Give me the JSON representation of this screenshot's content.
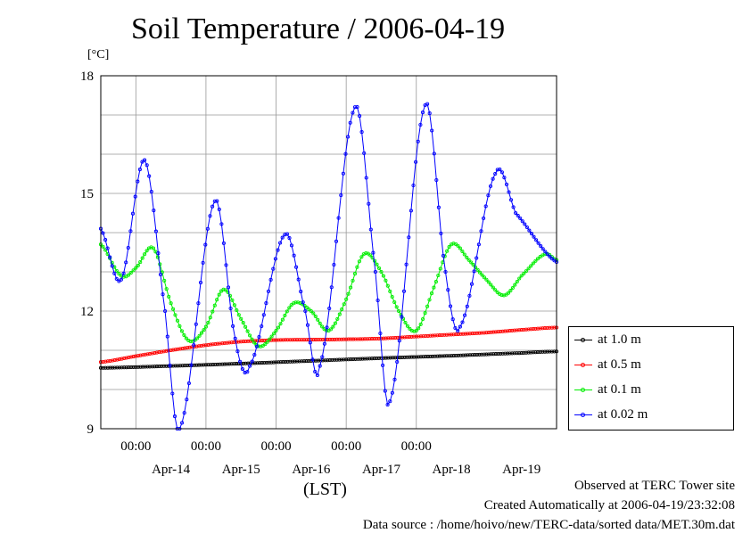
{
  "chart_data": {
    "type": "line",
    "title": "Soil Temperature / 2006-04-19",
    "unit_label": "[°C]",
    "xlabel": "(LST)",
    "x_range": [
      "2006-04-13 12:00",
      "2006-04-19 24:00"
    ],
    "ylim": [
      9,
      18
    ],
    "yticks": [
      9,
      12,
      15,
      18
    ],
    "xticks_time": [
      {
        "x": "2006-04-14 00:00",
        "label": "00:00"
      },
      {
        "x": "2006-04-15 00:00",
        "label": "00:00"
      },
      {
        "x": "2006-04-16 00:00",
        "label": "00:00"
      },
      {
        "x": "2006-04-17 00:00",
        "label": "00:00"
      },
      {
        "x": "2006-04-18 00:00",
        "label": "00:00"
      }
    ],
    "xticks_day": [
      {
        "x": "2006-04-14 12:00",
        "label": "Apr-14"
      },
      {
        "x": "2006-04-15 12:00",
        "label": "Apr-15"
      },
      {
        "x": "2006-04-16 12:00",
        "label": "Apr-16"
      },
      {
        "x": "2006-04-17 12:00",
        "label": "Apr-17"
      },
      {
        "x": "2006-04-18 12:00",
        "label": "Apr-18"
      },
      {
        "x": "2006-04-19 12:00",
        "label": "Apr-19"
      }
    ],
    "grid": true,
    "legend_position": "right",
    "series": [
      {
        "name": "at 1.0 m",
        "color": "#000000",
        "x": [
          "2006-04-13 12:00",
          "2006-04-14 12:00",
          "2006-04-15 12:00",
          "2006-04-16 12:00",
          "2006-04-17 12:00",
          "2006-04-18 12:00",
          "2006-04-19 12:00",
          "2006-04-19 24:00"
        ],
        "values": [
          10.55,
          10.6,
          10.66,
          10.73,
          10.8,
          10.86,
          10.93,
          10.97
        ]
      },
      {
        "name": "at 0.5 m",
        "color": "#ff0000",
        "x": [
          "2006-04-13 12:00",
          "2006-04-14 00:00",
          "2006-04-14 12:00",
          "2006-04-15 00:00",
          "2006-04-15 12:00",
          "2006-04-16 00:00",
          "2006-04-16 12:00",
          "2006-04-17 00:00",
          "2006-04-17 12:00",
          "2006-04-18 00:00",
          "2006-04-18 12:00",
          "2006-04-19 00:00",
          "2006-04-19 12:00",
          "2006-04-19 24:00"
        ],
        "values": [
          10.7,
          10.85,
          11.0,
          11.13,
          11.22,
          11.26,
          11.27,
          11.28,
          11.3,
          11.35,
          11.4,
          11.45,
          11.52,
          11.58
        ]
      },
      {
        "name": "at 0.1 m",
        "color": "#00ee00",
        "x": [
          "2006-04-13 12:00",
          "2006-04-13 19:00",
          "2006-04-14 00:00",
          "2006-04-14 06:00",
          "2006-04-14 12:00",
          "2006-04-14 18:00",
          "2006-04-15 00:00",
          "2006-04-15 06:00",
          "2006-04-15 12:00",
          "2006-04-15 18:00",
          "2006-04-16 00:00",
          "2006-04-16 06:00",
          "2006-04-16 12:00",
          "2006-04-16 18:00",
          "2006-04-17 00:00",
          "2006-04-17 06:00",
          "2006-04-17 12:00",
          "2006-04-17 18:00",
          "2006-04-18 00:00",
          "2006-04-18 06:00",
          "2006-04-18 12:00",
          "2006-04-18 18:00",
          "2006-04-19 00:00",
          "2006-04-19 06:00",
          "2006-04-19 12:00",
          "2006-04-19 20:00",
          "2006-04-19 24:00"
        ],
        "values": [
          13.7,
          12.9,
          13.1,
          13.6,
          12.2,
          11.25,
          11.6,
          12.55,
          11.8,
          11.1,
          11.5,
          12.2,
          12.0,
          11.5,
          12.3,
          13.45,
          13.0,
          12.0,
          11.5,
          12.6,
          13.7,
          13.3,
          12.8,
          12.4,
          12.9,
          13.45,
          13.3
        ]
      },
      {
        "name": "at 0.02 m",
        "color": "#0000ff",
        "x": [
          "2006-04-13 12:00",
          "2006-04-13 19:00",
          "2006-04-14 03:00",
          "2006-04-14 10:00",
          "2006-04-14 15:00",
          "2006-04-15 03:00",
          "2006-04-15 10:00",
          "2006-04-15 15:00",
          "2006-04-16 03:00",
          "2006-04-16 10:00",
          "2006-04-16 15:00",
          "2006-04-17 03:00",
          "2006-04-17 10:00",
          "2006-04-17 15:00",
          "2006-04-18 03:00",
          "2006-04-18 10:00",
          "2006-04-18 15:00",
          "2006-04-19 03:00",
          "2006-04-19 10:00",
          "2006-04-19 24:00"
        ],
        "values": [
          14.1,
          12.8,
          15.85,
          12.0,
          9.0,
          14.8,
          11.3,
          10.6,
          13.95,
          12.0,
          10.6,
          17.2,
          13.0,
          9.7,
          17.25,
          13.0,
          11.6,
          15.5,
          14.5,
          13.25
        ]
      }
    ]
  },
  "footer": {
    "line1": "Observed at TERC Tower site",
    "line2": "Created Automatically at 2006-04-19/23:32:08",
    "line3": "Data source : /home/hoivo/new/TERC-data/sorted  data/MET.30m.dat"
  }
}
